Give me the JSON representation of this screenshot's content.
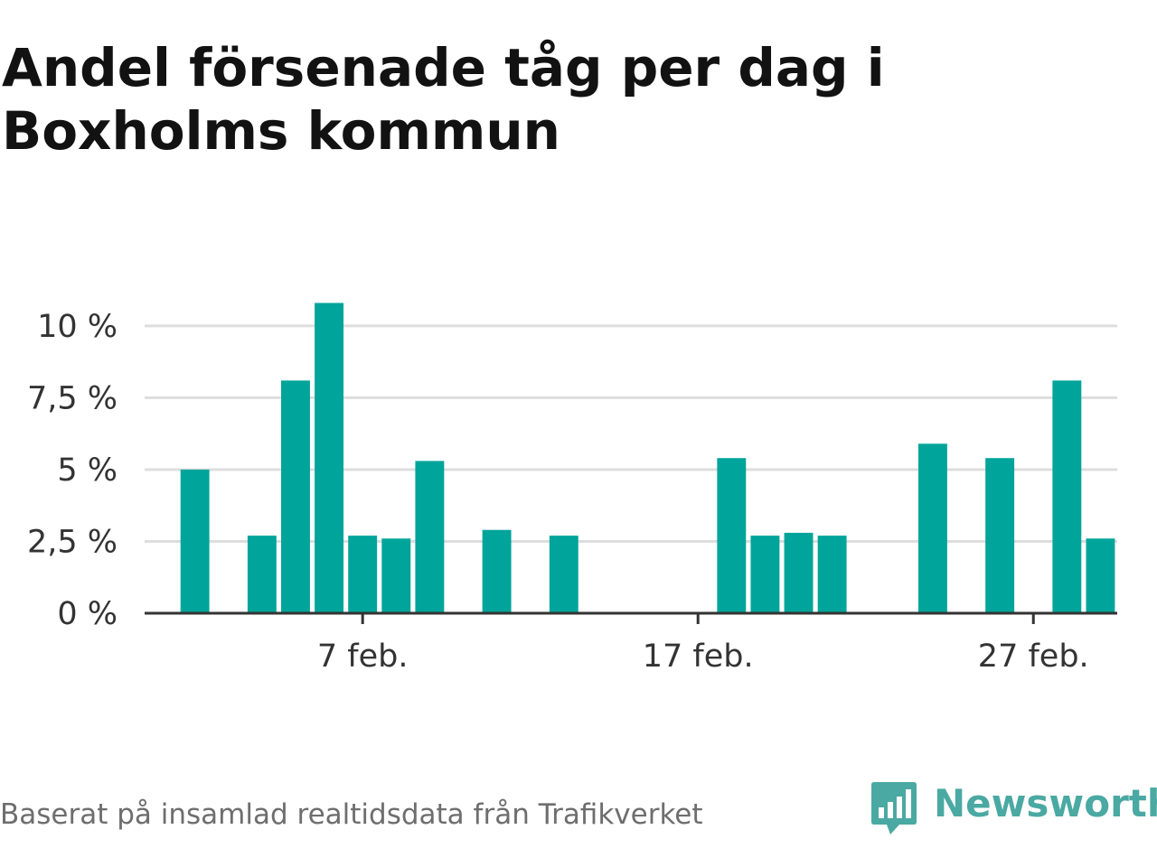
{
  "title": "Andel försenade tåg per dag i Boxholms kommun",
  "source_note": "Baserat på insamlad realtidsdata från Trafikverket",
  "brand": {
    "name": "Newsworthy",
    "icon": "newsworthy-logo-icon",
    "color": "#4aa9a2"
  },
  "colors": {
    "bar": "#00a49a",
    "grid": "#dddddd",
    "axis": "#333333",
    "text": "#333333"
  },
  "chart_data": {
    "type": "bar",
    "title": "Andel försenade tåg per dag i Boxholms kommun",
    "xlabel": "",
    "ylabel": "",
    "x_tick_labels": [
      "7 feb.",
      "17 feb.",
      "27 feb."
    ],
    "x_tick_days": [
      7,
      17,
      27
    ],
    "y_ticks": [
      0,
      2.5,
      5,
      7.5,
      10
    ],
    "y_tick_labels": [
      "0 %",
      "2,5 %",
      "5 %",
      "7,5 %",
      "10 %"
    ],
    "ylim": [
      0,
      10.5
    ],
    "xlim_days": [
      0.5,
      29.5
    ],
    "grid": true,
    "legend": "none",
    "categories": [
      "1 feb.",
      "2 feb.",
      "3 feb.",
      "4 feb.",
      "5 feb.",
      "6 feb.",
      "7 feb.",
      "8 feb.",
      "9 feb.",
      "10 feb.",
      "11 feb.",
      "12 feb.",
      "13 feb.",
      "14 feb.",
      "15 feb.",
      "16 feb.",
      "17 feb.",
      "18 feb.",
      "19 feb.",
      "20 feb.",
      "21 feb.",
      "22 feb.",
      "23 feb.",
      "24 feb.",
      "25 feb.",
      "26 feb.",
      "27 feb.",
      "28 feb.",
      "29 feb."
    ],
    "values": [
      0,
      5.0,
      0,
      2.7,
      8.1,
      10.8,
      2.7,
      2.6,
      5.3,
      0,
      2.9,
      0,
      2.7,
      0,
      0,
      0,
      0,
      5.4,
      2.7,
      2.8,
      2.7,
      0,
      0,
      5.9,
      0,
      5.4,
      0,
      8.1,
      2.6
    ]
  }
}
